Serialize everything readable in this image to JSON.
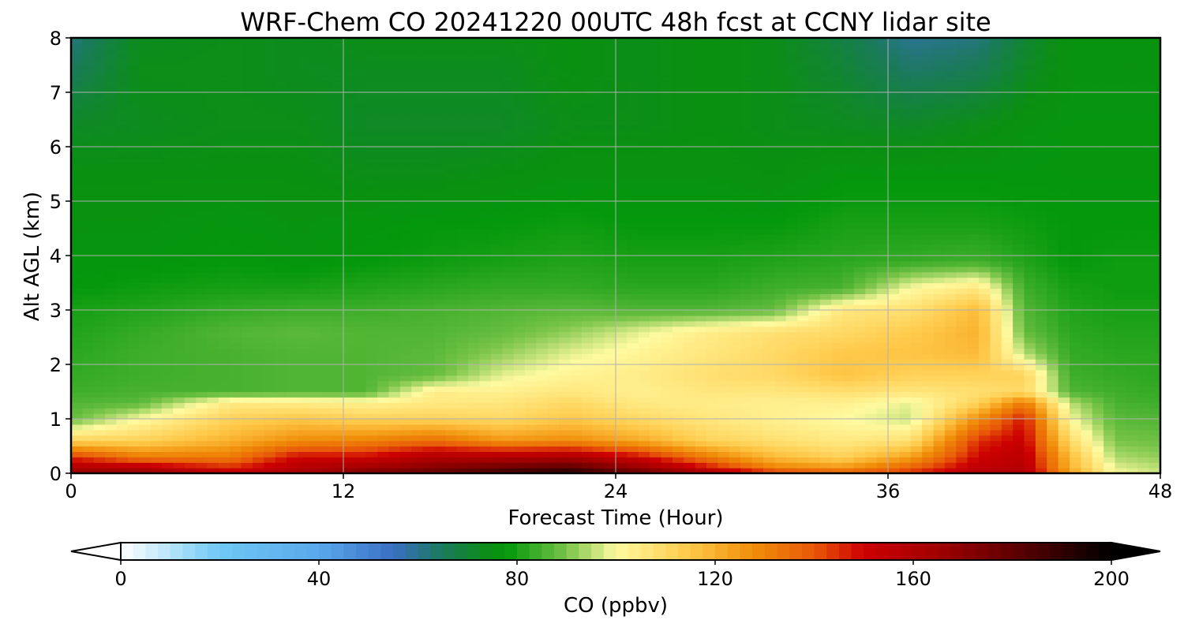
{
  "chart_data": {
    "type": "heatmap",
    "title": "WRF-Chem CO  20241220 00UTC 48h fcst at CCNY lidar site",
    "xlabel": "Forecast Time (Hour)",
    "ylabel": "Alt AGL (km)",
    "xlim": [
      0,
      48
    ],
    "ylim": [
      0,
      8
    ],
    "xticks": [
      "0",
      "12",
      "24",
      "36",
      "48"
    ],
    "yticks": [
      "0",
      "1",
      "2",
      "3",
      "4",
      "5",
      "6",
      "7",
      "8"
    ],
    "grid": true,
    "colorbar": {
      "label": "CO  (ppbv)",
      "range": [
        0,
        200
      ],
      "extend": "both",
      "ticks": [
        "0",
        "40",
        "80",
        "120",
        "160",
        "200"
      ],
      "colors": {
        "0": "#ffffff",
        "20": "#6ec8f5",
        "40": "#5aa8ea",
        "55": "#3a6ec4",
        "65": "#1a7a5a",
        "75": "#0a9010",
        "78": "#04980c",
        "90": "#78c448",
        "100": "#fffaa0",
        "115": "#ffc848",
        "128": "#f08c08",
        "140": "#e85808",
        "150": "#cc0000",
        "165": "#a00000",
        "180": "#600000",
        "190": "#300000",
        "200": "#000000"
      }
    },
    "profile_heights_km": [
      0.0,
      0.1,
      0.3,
      0.6,
      1.0,
      1.3,
      1.5,
      1.8,
      2.2,
      2.6,
      3.0,
      3.4,
      3.9,
      4.6,
      5.5,
      6.4,
      7.4,
      8.0
    ],
    "profiles": [
      {
        "hour": 0,
        "co_ppbv": [
          170,
          160,
          145,
          112,
          88,
          86,
          84,
          83,
          82,
          81,
          80,
          78,
          77,
          76,
          75,
          72,
          65,
          62
        ]
      },
      {
        "hour": 3,
        "co_ppbv": [
          170,
          158,
          132,
          112,
          100,
          87,
          85,
          84,
          84,
          83,
          81,
          79,
          77,
          76,
          75,
          73,
          74,
          73
        ]
      },
      {
        "hour": 7,
        "co_ppbv": [
          155,
          146,
          132,
          120,
          112,
          105,
          85,
          85,
          85,
          86,
          83,
          80,
          78,
          77,
          75,
          74,
          74,
          74
        ]
      },
      {
        "hour": 10,
        "co_ppbv": [
          162,
          158,
          150,
          128,
          115,
          104,
          86,
          86,
          86,
          87,
          84,
          80,
          77,
          76,
          75,
          74,
          73,
          73
        ]
      },
      {
        "hour": 13,
        "co_ppbv": [
          175,
          165,
          150,
          130,
          112,
          103,
          86,
          86,
          86,
          86,
          84,
          81,
          78,
          77,
          74,
          72,
          73,
          74
        ]
      },
      {
        "hour": 16,
        "co_ppbv": [
          180,
          172,
          160,
          135,
          112,
          105,
          104,
          88,
          87,
          86,
          85,
          82,
          79,
          78,
          74,
          72,
          73,
          74
        ]
      },
      {
        "hour": 19,
        "co_ppbv": [
          190,
          178,
          160,
          126,
          110,
          106,
          103,
          98,
          92,
          88,
          86,
          83,
          80,
          78,
          75,
          72,
          73,
          74
        ]
      },
      {
        "hour": 22,
        "co_ppbv": [
          195,
          182,
          162,
          128,
          115,
          110,
          106,
          102,
          98,
          92,
          87,
          83,
          81,
          79,
          76,
          74,
          75,
          75
        ]
      },
      {
        "hour": 25,
        "co_ppbv": [
          180,
          168,
          150,
          122,
          110,
          105,
          103,
          104,
          102,
          98,
          86,
          82,
          80,
          78,
          76,
          74,
          74,
          74
        ]
      },
      {
        "hour": 28,
        "co_ppbv": [
          165,
          150,
          132,
          112,
          106,
          104,
          106,
          108,
          106,
          104,
          86,
          82,
          80,
          78,
          76,
          75,
          75,
          75
        ]
      },
      {
        "hour": 31,
        "co_ppbv": [
          148,
          130,
          118,
          108,
          103,
          103,
          106,
          110,
          110,
          108,
          88,
          84,
          81,
          78,
          75,
          74,
          74,
          74
        ]
      },
      {
        "hour": 34,
        "co_ppbv": [
          140,
          126,
          112,
          105,
          100,
          103,
          108,
          116,
          115,
          110,
          106,
          85,
          82,
          80,
          77,
          73,
          70,
          68
        ]
      },
      {
        "hour": 37,
        "co_ppbv": [
          146,
          138,
          124,
          108,
          96,
          98,
          106,
          112,
          116,
          114,
          108,
          100,
          83,
          80,
          77,
          72,
          64,
          60
        ]
      },
      {
        "hour": 40,
        "co_ppbv": [
          158,
          155,
          150,
          145,
          128,
          112,
          108,
          112,
          118,
          120,
          118,
          106,
          84,
          80,
          77,
          74,
          66,
          62
        ]
      },
      {
        "hour": 42,
        "co_ppbv": [
          160,
          158,
          156,
          152,
          148,
          132,
          110,
          112,
          95,
          88,
          86,
          84,
          81,
          79,
          77,
          76,
          72,
          70
        ]
      },
      {
        "hour": 44,
        "co_ppbv": [
          125,
          120,
          118,
          110,
          100,
          95,
          86,
          84,
          83,
          82,
          81,
          80,
          78,
          78,
          77,
          77,
          76,
          76
        ]
      },
      {
        "hour": 46,
        "co_ppbv": [
          100,
          98,
          94,
          90,
          87,
          85,
          84,
          83,
          82,
          81,
          80,
          79,
          79,
          78,
          77,
          77,
          76,
          76
        ]
      },
      {
        "hour": 48,
        "co_ppbv": [
          96,
          95,
          92,
          89,
          86,
          84,
          83,
          82,
          82,
          81,
          80,
          79,
          79,
          78,
          77,
          77,
          76,
          76
        ]
      }
    ]
  }
}
